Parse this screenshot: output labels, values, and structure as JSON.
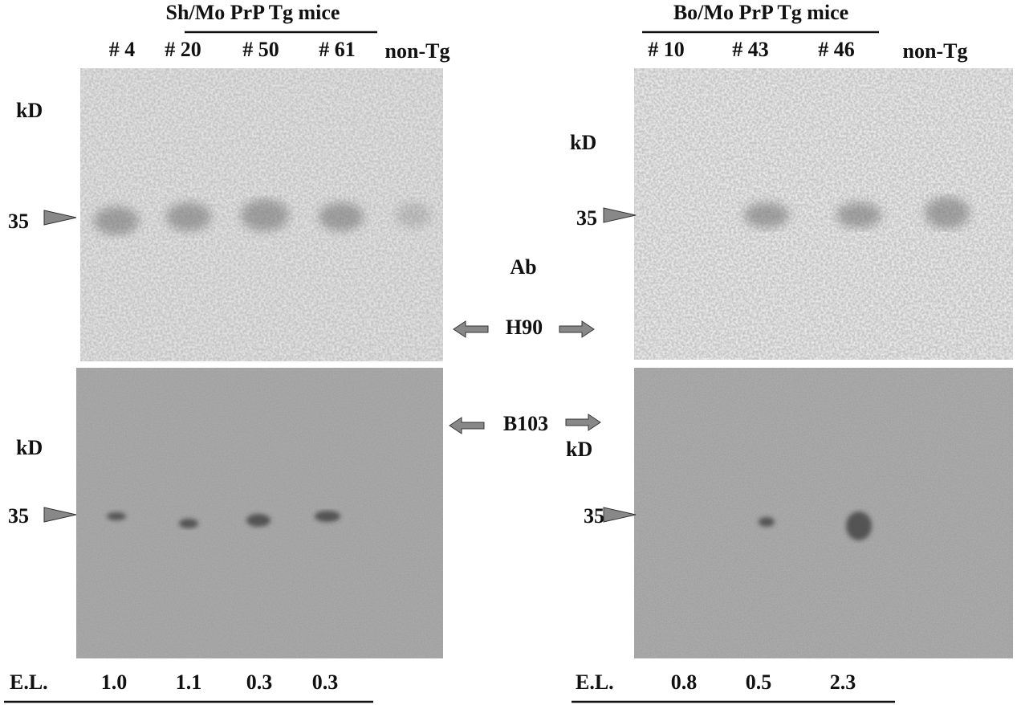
{
  "left_panel": {
    "title": "Sh/Mo PrP Tg mice",
    "lanes": [
      "# 4",
      "# 20",
      "# 50",
      "# 61",
      "non-Tg"
    ],
    "blots": [
      {
        "unit": "kD",
        "marker": "35"
      },
      {
        "unit": "kD",
        "marker": "35"
      }
    ],
    "el": {
      "label": "E.L.",
      "values": [
        "1.0",
        "1.1",
        "0.3",
        "0.3"
      ]
    }
  },
  "right_panel": {
    "title": "Bo/Mo PrP Tg mice",
    "lanes": [
      "# 10",
      "# 43",
      "# 46",
      "non-Tg"
    ],
    "blots": [
      {
        "unit": "kD",
        "marker": "35"
      },
      {
        "unit": "kD",
        "marker": "35"
      }
    ],
    "el": {
      "label": "E.L.",
      "values": [
        "0.8",
        "0.5",
        "2.3"
      ]
    }
  },
  "antibodies": {
    "label": "Ab",
    "names": [
      "H90",
      "B103"
    ]
  }
}
